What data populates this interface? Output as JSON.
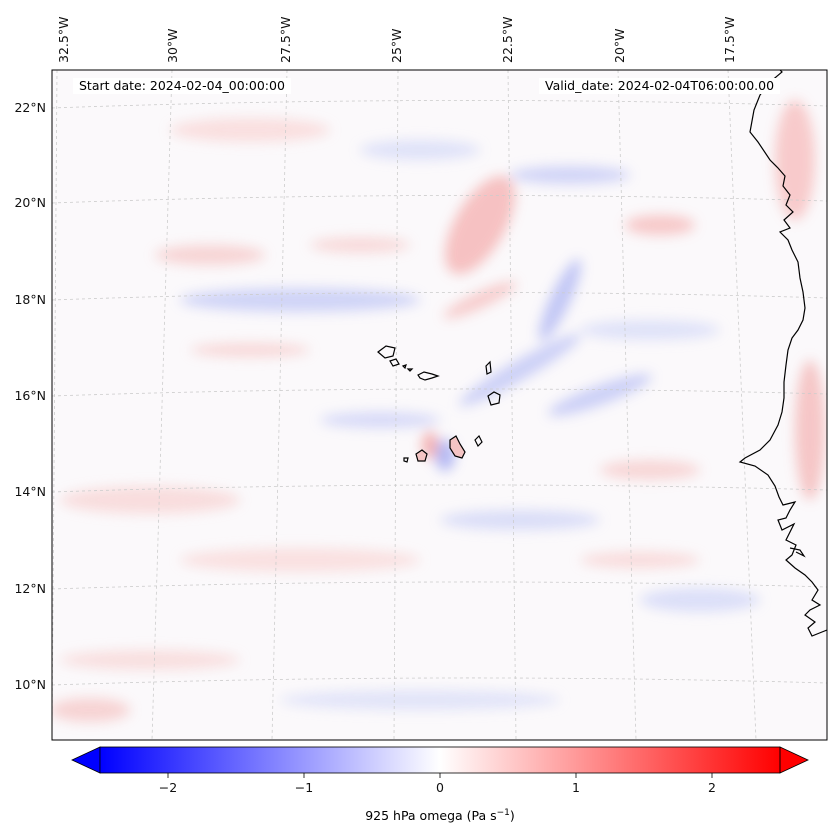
{
  "map": {
    "start_date_text": "Start date: 2024-02-04_00:00:00",
    "valid_date_text": "Valid_date: 2024-02-04T06:00:00.00",
    "lon_labels": [
      "32.5°W",
      "30°W",
      "27.5°W",
      "25°W",
      "22.5°W",
      "20°W",
      "17.5°W"
    ],
    "lat_labels": [
      "22°N",
      "20°N",
      "18°N",
      "16°N",
      "14°N",
      "12°N",
      "10°N"
    ],
    "extent": {
      "lon_min": -32.7,
      "lon_max": -16.2,
      "lat_min": 8.9,
      "lat_max": 22.8
    },
    "gridlines": true,
    "coastline_color": "#000000"
  },
  "colorbar": {
    "label": "925 hPa omega (Pa s",
    "label_sup": "−1",
    "label_end": ")",
    "ticks": [
      "−2",
      "−1",
      "0",
      "1",
      "2"
    ],
    "tick_values": [
      -2,
      -1,
      0,
      1,
      2
    ],
    "range": [
      -2.5,
      2.5
    ],
    "extend": "both",
    "colormap": "bwr",
    "low_color": "#0000ff",
    "mid_color": "#ffffff",
    "high_color": "#ff0000"
  }
}
